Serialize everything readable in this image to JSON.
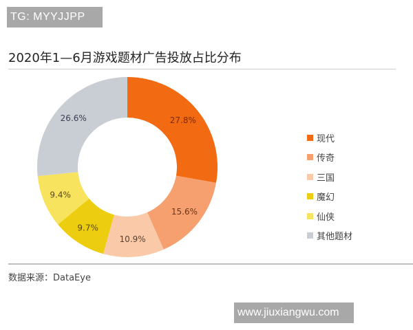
{
  "watermark_top": "TG: MYYJJPP",
  "watermark_bottom": "www.jiuxiangwu.com",
  "title": "2020年1—6月游戏题材广告投放占比分布",
  "source": "数据来源：DataEye",
  "legend": [
    {
      "label": "现代",
      "color": "#f26a12"
    },
    {
      "label": "传奇",
      "color": "#f5a06e"
    },
    {
      "label": "三国",
      "color": "#f9c9a8"
    },
    {
      "label": "魔幻",
      "color": "#edcd10"
    },
    {
      "label": "仙侠",
      "color": "#f7e35e"
    },
    {
      "label": "其他题材",
      "color": "#c9cdd4"
    }
  ],
  "chart_data": {
    "type": "pie",
    "donut": true,
    "title": "2020年1—6月游戏题材广告投放占比分布",
    "categories": [
      "现代",
      "传奇",
      "三国",
      "魔幻",
      "仙侠",
      "其他题材"
    ],
    "values": [
      27.8,
      15.6,
      10.9,
      9.7,
      9.4,
      26.6
    ],
    "labels": [
      "27.8%",
      "15.6%",
      "10.9%",
      "9.7%",
      "9.4%",
      "26.6%"
    ],
    "colors": [
      "#f26a12",
      "#f5a06e",
      "#f9c9a8",
      "#edcd10",
      "#f7e35e",
      "#c9cdd4"
    ],
    "unit": "%",
    "legend_position": "right",
    "start_angle": "12 o'clock, clockwise",
    "source": "数据来源：DataEye"
  }
}
